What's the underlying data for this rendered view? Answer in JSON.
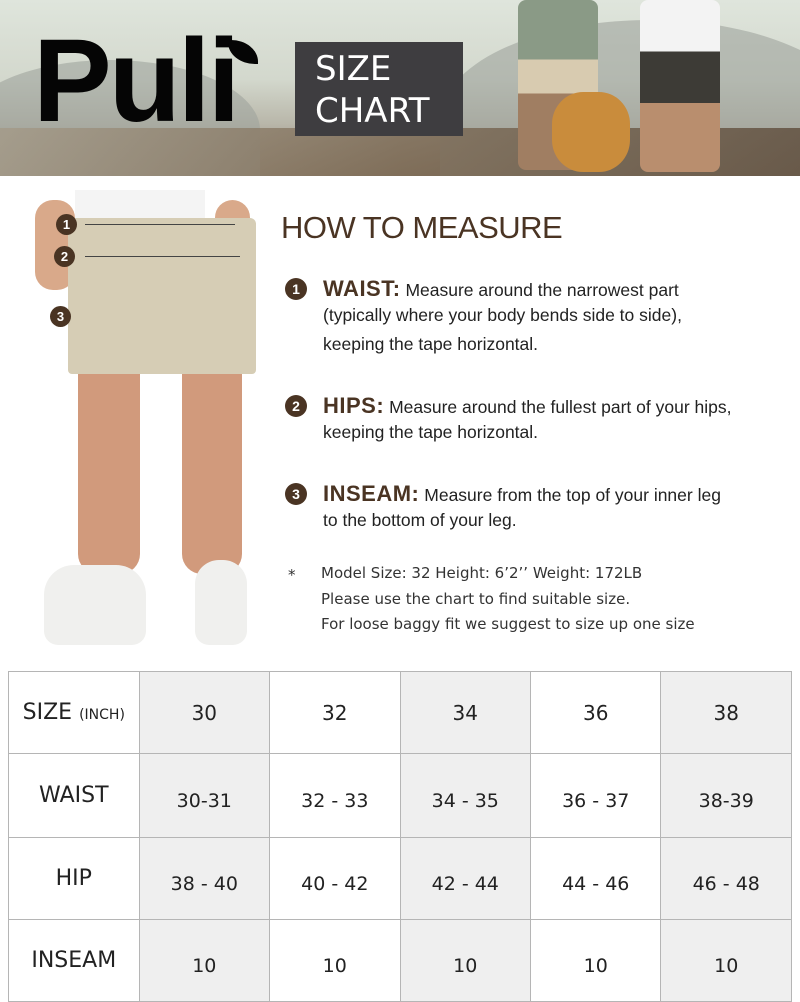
{
  "brand": {
    "logo_text": "Puli",
    "badge_line1": "SIZE",
    "badge_line2": "CHART"
  },
  "colors": {
    "accent": "#4a3423",
    "badge_bg": "#3e3d40",
    "shaded_cell": "#efefef"
  },
  "howto": {
    "title": "HOW TO MEASURE",
    "items": [
      {
        "num": "1",
        "title": "WAIST:",
        "text": "Measure around the narrowest part",
        "lines": [
          "(typically where your body bends side to side),",
          "keeping the tape horizontal."
        ]
      },
      {
        "num": "2",
        "title": "HIPS:",
        "text": "Measure around the fullest part of your hips,",
        "lines": [
          "keeping the tape horizontal."
        ]
      },
      {
        "num": "3",
        "title": "INSEAM:",
        "text": "Measure from the top of your inner leg",
        "lines": [
          "to the bottom of your leg."
        ]
      }
    ],
    "note": {
      "star": "*",
      "lines": [
        "Model Size: 32  Height: 6’2’’ Weight: 172LB",
        "Please use the chart to find suitable size.",
        "For loose baggy fit we suggest to size up one size"
      ]
    }
  },
  "markers": [
    "1",
    "2",
    "3"
  ],
  "table": {
    "size_label": "SIZE",
    "size_unit": "(INCH)",
    "sizes": [
      "30",
      "32",
      "34",
      "36",
      "38"
    ],
    "rows": [
      {
        "label": "WAIST",
        "values": [
          "30-31",
          "32 - 33",
          "34 - 35",
          "36 - 37",
          "38-39"
        ]
      },
      {
        "label": "HIP",
        "values": [
          "38 - 40",
          "40 - 42",
          "42 - 44",
          "44 - 46",
          "46 - 48"
        ]
      },
      {
        "label": "INSEAM",
        "values": [
          "10",
          "10",
          "10",
          "10",
          "10"
        ]
      }
    ]
  }
}
